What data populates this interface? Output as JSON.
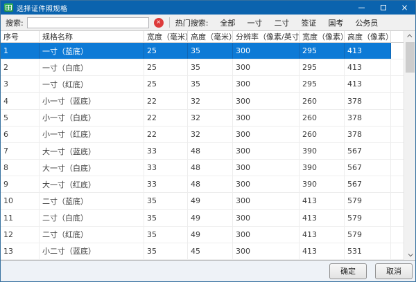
{
  "window": {
    "title": "选择证件照规格",
    "close_glyph": "×"
  },
  "search": {
    "label": "搜索:",
    "value": "",
    "clear_glyph": "×",
    "hot_label": "热门搜索:",
    "hot_items": [
      "全部",
      "一寸",
      "二寸",
      "签证",
      "国考",
      "公务员"
    ]
  },
  "table": {
    "headers": [
      "序号",
      "规格名称",
      "宽度（毫米）",
      "高度（毫米）",
      "分辨率（像素/英寸）",
      "宽度（像素）",
      "高度（像素）"
    ],
    "selected_index": 0,
    "rows": [
      [
        "1",
        "一寸（蓝底）",
        "25",
        "35",
        "300",
        "295",
        "413"
      ],
      [
        "2",
        "一寸（白底）",
        "25",
        "35",
        "300",
        "295",
        "413"
      ],
      [
        "3",
        "一寸（红底）",
        "25",
        "35",
        "300",
        "295",
        "413"
      ],
      [
        "4",
        "小一寸（蓝底）",
        "22",
        "32",
        "300",
        "260",
        "378"
      ],
      [
        "5",
        "小一寸（白底）",
        "22",
        "32",
        "300",
        "260",
        "378"
      ],
      [
        "6",
        "小一寸（红底）",
        "22",
        "32",
        "300",
        "260",
        "378"
      ],
      [
        "7",
        "大一寸（蓝底）",
        "33",
        "48",
        "300",
        "390",
        "567"
      ],
      [
        "8",
        "大一寸（白底）",
        "33",
        "48",
        "300",
        "390",
        "567"
      ],
      [
        "9",
        "大一寸（红底）",
        "33",
        "48",
        "300",
        "390",
        "567"
      ],
      [
        "10",
        "二寸（蓝底）",
        "35",
        "49",
        "300",
        "413",
        "579"
      ],
      [
        "11",
        "二寸（白底）",
        "35",
        "49",
        "300",
        "413",
        "579"
      ],
      [
        "12",
        "二寸（红底）",
        "35",
        "49",
        "300",
        "413",
        "579"
      ],
      [
        "13",
        "小二寸（蓝底）",
        "35",
        "45",
        "300",
        "413",
        "531"
      ]
    ]
  },
  "footer": {
    "ok_label": "确定",
    "cancel_label": "取消"
  },
  "colors": {
    "titlebar": "#0b63ae",
    "selection": "#0d7ad6",
    "clear_button": "#dd3b3b",
    "app_icon": "#2fa84f",
    "footer_bg": "#eef2f7"
  }
}
